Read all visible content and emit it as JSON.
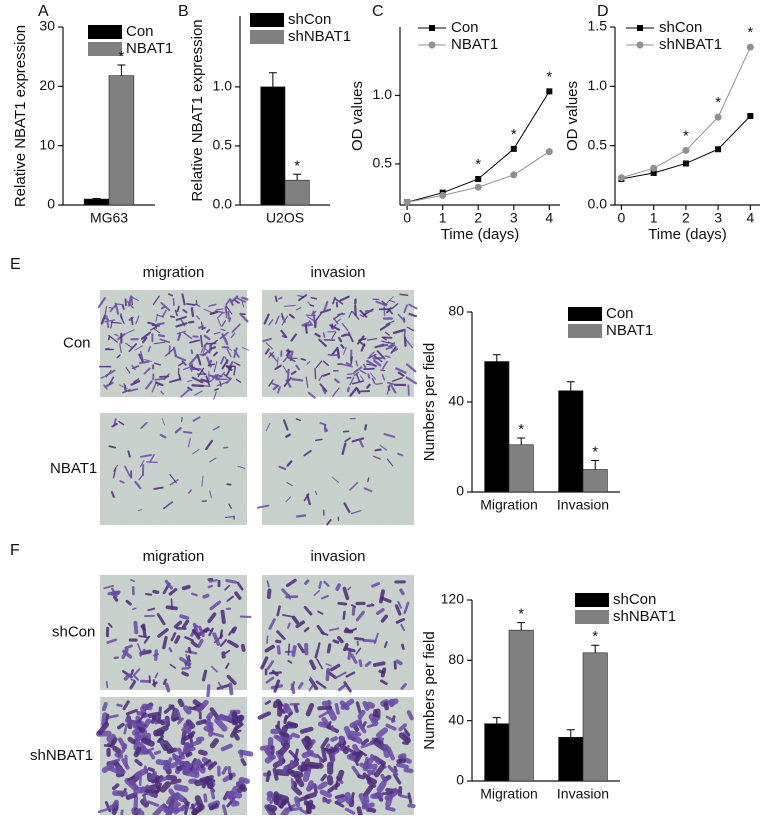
{
  "chart_data": [
    {
      "type": "bar",
      "panel_label": "A",
      "ylabel": "Relative NBAT1 expression",
      "categories": [
        "MG63"
      ],
      "ylim": [
        0,
        30
      ],
      "yticks": [
        0,
        10,
        20,
        30
      ],
      "series": [
        {
          "name": "Con",
          "color": "#000000",
          "values": [
            1.0
          ],
          "errors": [
            0.1
          ]
        },
        {
          "name": "NBAT1",
          "color": "#808080",
          "values": [
            21.8
          ],
          "errors": [
            1.8
          ],
          "annotations": [
            "*"
          ]
        }
      ]
    },
    {
      "type": "bar",
      "panel_label": "B",
      "ylabel": "Relative NBAT1 expression",
      "categories": [
        "U2OS"
      ],
      "ylim": [
        0,
        1.6
      ],
      "yticks": [
        {
          "value": 0,
          "label": "0.0"
        },
        0.5,
        {
          "value": 1,
          "label": "1.0"
        }
      ],
      "series": [
        {
          "name": "shCon",
          "color": "#000000",
          "values": [
            1.0
          ],
          "errors": [
            0.12
          ]
        },
        {
          "name": "shNBAT1",
          "color": "#808080",
          "values": [
            0.21
          ],
          "errors": [
            0.05
          ],
          "annotations": [
            "*"
          ]
        }
      ]
    },
    {
      "type": "line",
      "panel_label": "C",
      "xlabel": "Time (days)",
      "ylabel": "OD values",
      "x": [
        0,
        1,
        2,
        3,
        4
      ],
      "xlim": [
        -0.2,
        4.3
      ],
      "xticks": [
        0,
        1,
        2,
        3,
        4
      ],
      "ylim": [
        0.2,
        1.5
      ],
      "yticks": [
        0.5,
        {
          "value": 1,
          "label": "1.0"
        }
      ],
      "series": [
        {
          "name": "Con",
          "color": "#000000",
          "values": [
            0.22,
            0.29,
            0.39,
            0.61,
            1.03
          ],
          "annotations": [
            null,
            null,
            "*",
            "*",
            "*"
          ]
        },
        {
          "name": "NBAT1",
          "color": "#909090",
          "values": [
            0.22,
            0.27,
            0.33,
            0.42,
            0.59
          ]
        }
      ]
    },
    {
      "type": "line",
      "panel_label": "D",
      "xlabel": "Time (days)",
      "ylabel": "OD values",
      "x": [
        0,
        1,
        2,
        3,
        4
      ],
      "xlim": [
        -0.2,
        4.3
      ],
      "xticks": [
        0,
        1,
        2,
        3,
        4
      ],
      "ylim": [
        0,
        1.5
      ],
      "yticks": [
        {
          "value": 0,
          "label": "0.0"
        },
        0.5,
        {
          "value": 1,
          "label": "1.0"
        },
        1.5
      ],
      "series": [
        {
          "name": "shCon",
          "color": "#000000",
          "values": [
            0.22,
            0.27,
            0.35,
            0.47,
            0.75
          ]
        },
        {
          "name": "shNBAT1",
          "color": "#909090",
          "values": [
            0.23,
            0.31,
            0.46,
            0.74,
            1.33
          ],
          "annotations": [
            null,
            null,
            "*",
            "*",
            "*"
          ]
        }
      ]
    },
    {
      "type": "bar",
      "ylabel": "Numbers per field",
      "categories": [
        "Migration",
        "Invasion"
      ],
      "ylim": [
        0,
        80
      ],
      "yticks": [
        0,
        40,
        80
      ],
      "series": [
        {
          "name": "Con",
          "color": "#000000",
          "values": [
            58,
            45
          ],
          "errors": [
            3,
            4
          ]
        },
        {
          "name": "NBAT1",
          "color": "#808080",
          "values": [
            21,
            10
          ],
          "errors": [
            3,
            4
          ],
          "annotations": [
            "*",
            "*"
          ]
        }
      ]
    },
    {
      "type": "bar",
      "ylabel": "Numbers per field",
      "categories": [
        "Migration",
        "Invasion"
      ],
      "ylim": [
        0,
        120
      ],
      "yticks": [
        0,
        40,
        80,
        120
      ],
      "series": [
        {
          "name": "shCon",
          "color": "#000000",
          "values": [
            38,
            29
          ],
          "errors": [
            4,
            5
          ]
        },
        {
          "name": "shNBAT1",
          "color": "#808080",
          "values": [
            100,
            85
          ],
          "errors": [
            5,
            5
          ],
          "annotations": [
            "*",
            "*"
          ]
        }
      ]
    }
  ],
  "image_panels": [
    {
      "panel_label": "E",
      "columns": [
        "migration",
        "invasion"
      ],
      "rows": [
        "Con",
        "NBAT1"
      ]
    },
    {
      "panel_label": "F",
      "columns": [
        "migration",
        "invasion"
      ],
      "rows": [
        "shCon",
        "shNBAT1"
      ]
    }
  ]
}
